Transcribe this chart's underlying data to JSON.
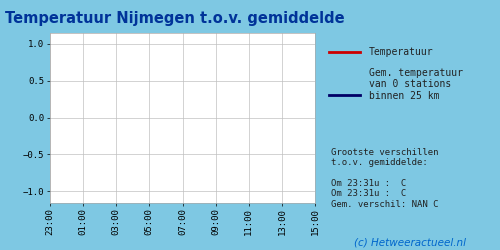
{
  "title": "Temperatuur Nijmegen t.o.v. gemiddelde",
  "title_color": "#003399",
  "bg_color": "#7ec8e3",
  "plot_bg_color": "#ffffff",
  "right_panel_bg": "#ffffff",
  "yticks": [
    -1.0,
    -0.5,
    0.0,
    0.5,
    1.0
  ],
  "ylim": [
    -1.15,
    1.15
  ],
  "xtick_labels": [
    "23:00",
    "01:00",
    "03:00",
    "05:00",
    "07:00",
    "09:00",
    "11:00",
    "13:00",
    "15:00"
  ],
  "legend_line1_color": "#cc0000",
  "legend_line2_color": "#000066",
  "legend_text1": "Temperatuur",
  "legend_text2": "Gem. temperatuur\nvan 0 stations\nbinnen 25 km",
  "info_text": "Grootste verschillen\nt.o.v. gemiddelde:\n\nOm 23:31u :  C\nOm 23:31u :  C\nGem. verschil: NAN C",
  "footer_text": "(c) Hetweeractueel.nl",
  "footer_color": "#0066cc",
  "grid_color": "#c0c0c0",
  "tick_fontsize": 6.5,
  "font_family": "monospace",
  "title_fontsize": 10.5
}
